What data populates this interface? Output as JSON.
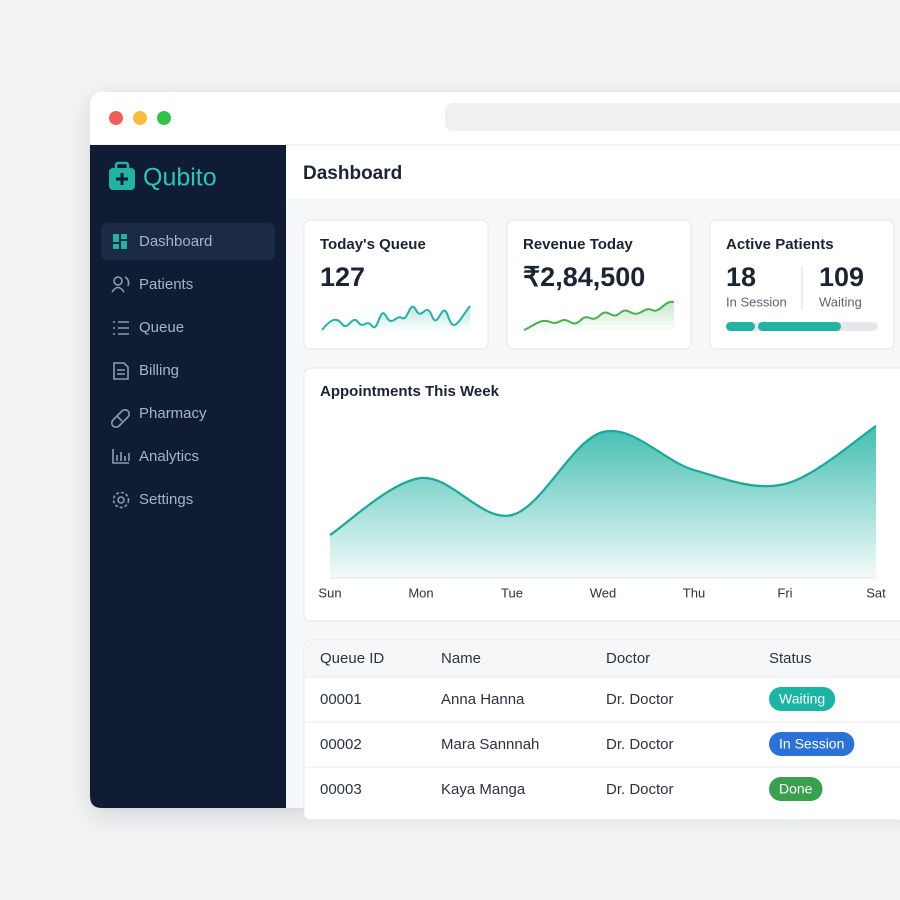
{
  "app": {
    "name": "Qubito"
  },
  "nav": [
    "Dashboard",
    "Patients",
    "Queue",
    "Billing",
    "Pharmacy",
    "Analytics",
    "Settings"
  ],
  "header": {
    "title": "Dashboard"
  },
  "cards": [
    {
      "title": "Today's Queue",
      "value": 127
    },
    {
      "title": "Revenue Today",
      "value": "₹2,84,500"
    },
    {
      "title": "Active Patients",
      "stats": [
        {
          "value": 18,
          "label": "In Session"
        },
        {
          "value": 109,
          "label": "Waiting"
        }
      ]
    }
  ],
  "appointments": {
    "title": "Appointments This Week",
    "categories": [
      "Sun",
      "Mon",
      "Tue",
      "Wed",
      "Thu",
      "Fri",
      "Sat"
    ],
    "values": [
      43,
      100,
      63,
      146,
      108,
      94,
      152
    ]
  },
  "table": {
    "columns": [
      "Queue ID",
      "Name",
      "Doctor",
      "Status"
    ],
    "rows": [
      [
        "00001",
        "Anna Hanna",
        "Dr. Doctor",
        "Waiting"
      ],
      [
        "00002",
        "Mara Sannnah",
        "Dr. Doctor",
        "In Session"
      ],
      [
        "00003",
        "Kaya Manga",
        "Dr. Doctor",
        "Done"
      ]
    ]
  }
}
